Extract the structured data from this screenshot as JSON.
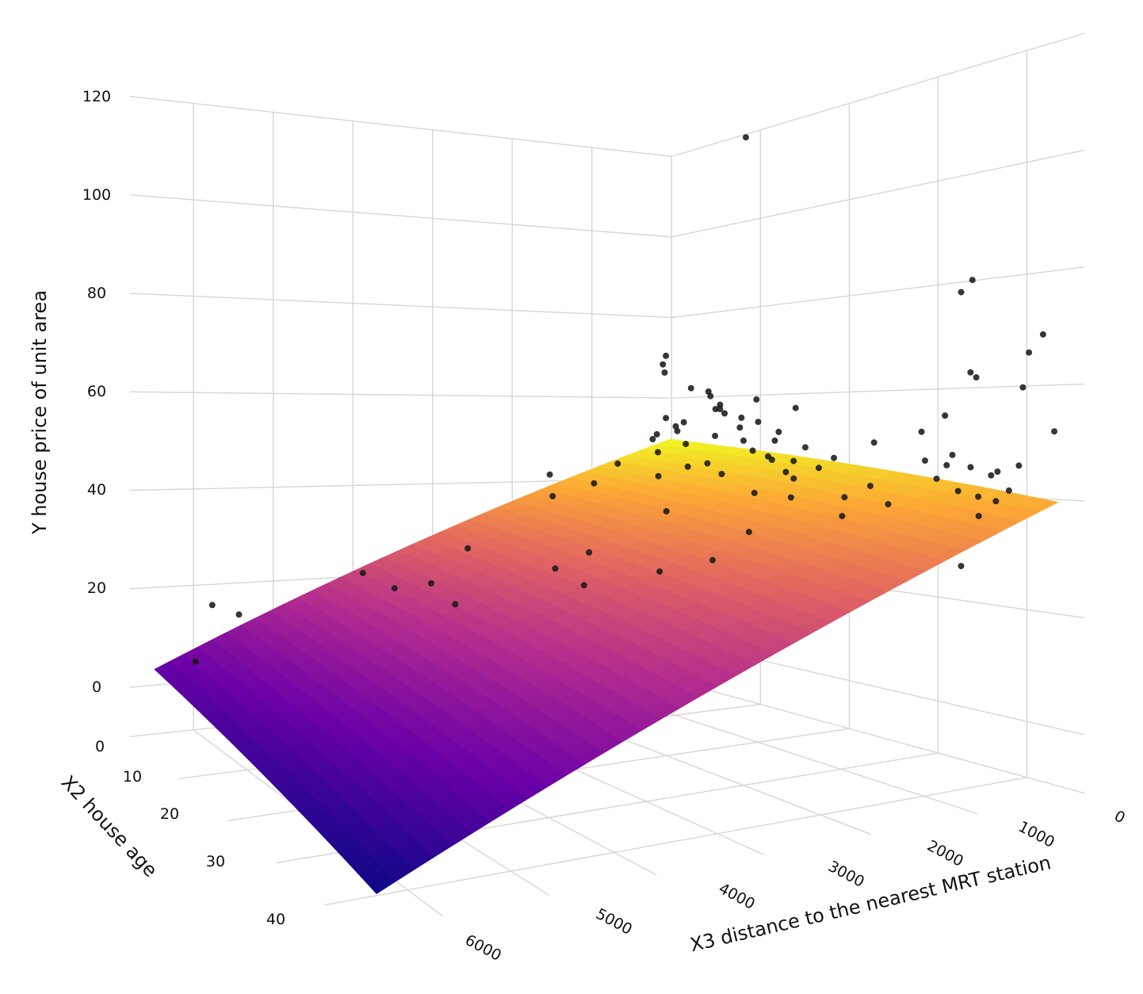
{
  "chart_data": {
    "type": "scatter3d+surface",
    "axes": {
      "x": {
        "title": "X2 house age",
        "range": [
          0,
          46.5
        ],
        "ticks": [
          0,
          10,
          20,
          30,
          40
        ],
        "tick_labels": [
          "0",
          "10",
          "20",
          "30",
          "40"
        ]
      },
      "y": {
        "title": "X3 distance to the nearest MRT station",
        "range": [
          0,
          6800
        ],
        "ticks": [
          0,
          1000,
          2000,
          3000,
          4000,
          5000,
          6000
        ],
        "tick_labels": [
          "0",
          "1000",
          "2000",
          "3000",
          "4000",
          "5000",
          "6000"
        ]
      },
      "z": {
        "title": "Y house price of unit area",
        "range": [
          -10,
          120
        ],
        "ticks": [
          0,
          20,
          40,
          60,
          80,
          100,
          120
        ],
        "tick_labels": [
          "0",
          "20",
          "40",
          "60",
          "80",
          "100",
          "120"
        ]
      }
    },
    "grid": true,
    "surface": {
      "intercept": 49.89,
      "coef_age": -0.231,
      "coef_distance": -0.00719,
      "x_range": [
        0,
        43.8
      ],
      "y_range": [
        23,
        6488
      ],
      "colorscale": [
        "#0d0887",
        "#6a00a8",
        "#b12a90",
        "#e16462",
        "#fca636",
        "#f0f921"
      ]
    },
    "marker_color": "#1a1a1a",
    "points": [
      [
        1.1,
        193,
        55
      ],
      [
        1.5,
        274,
        68
      ],
      [
        1.7,
        274,
        66
      ],
      [
        2.0,
        290,
        70
      ],
      [
        3.5,
        330,
        53
      ],
      [
        5.0,
        390,
        54
      ],
      [
        6.3,
        90,
        58
      ],
      [
        7.1,
        289,
        60
      ],
      [
        8.0,
        405,
        61
      ],
      [
        8.5,
        373,
        57
      ],
      [
        9.2,
        338,
        56
      ],
      [
        10.8,
        252,
        117.5
      ],
      [
        11.0,
        323,
        55
      ],
      [
        12.0,
        400,
        50
      ],
      [
        13.2,
        560,
        53
      ],
      [
        14.0,
        492,
        48
      ],
      [
        15.0,
        372,
        46
      ],
      [
        3.0,
        560,
        50
      ],
      [
        4.0,
        600,
        47
      ],
      [
        5.5,
        520,
        52
      ],
      [
        6.0,
        470,
        49
      ],
      [
        7.5,
        600,
        44
      ],
      [
        9.5,
        480,
        51
      ],
      [
        10.0,
        620,
        45
      ],
      [
        12.5,
        700,
        43
      ],
      [
        13.8,
        430,
        59
      ],
      [
        16.0,
        393,
        52
      ],
      [
        16.5,
        560,
        47
      ],
      [
        17.0,
        300,
        57
      ],
      [
        18.0,
        420,
        46
      ],
      [
        19.0,
        600,
        44
      ],
      [
        20.0,
        480,
        49
      ],
      [
        2.5,
        400,
        46
      ],
      [
        0.0,
        185,
        51
      ],
      [
        4.5,
        250,
        62
      ],
      [
        8.8,
        350,
        57
      ],
      [
        14.5,
        290,
        50
      ],
      [
        11.5,
        180,
        54
      ],
      [
        7.0,
        900,
        42
      ],
      [
        18.5,
        900,
        40
      ],
      [
        21.0,
        700,
        43
      ],
      [
        22.0,
        520,
        45
      ],
      [
        6.5,
        1200,
        38
      ],
      [
        3.2,
        1300,
        40
      ],
      [
        30.0,
        170,
        52
      ],
      [
        32.0,
        110,
        55
      ],
      [
        33.0,
        400,
        47
      ],
      [
        34.0,
        270,
        46
      ],
      [
        35.0,
        300,
        48
      ],
      [
        35.5,
        500,
        44
      ],
      [
        36.0,
        150,
        62
      ],
      [
        36.5,
        250,
        63
      ],
      [
        37.0,
        90,
        44
      ],
      [
        37.8,
        360,
        46
      ],
      [
        38.0,
        500,
        42
      ],
      [
        39.0,
        200,
        45
      ],
      [
        39.5,
        430,
        41
      ],
      [
        40.0,
        300,
        40
      ],
      [
        40.5,
        120,
        46
      ],
      [
        41.0,
        550,
        38
      ],
      [
        41.5,
        300,
        42
      ],
      [
        42.0,
        150,
        66
      ],
      [
        42.5,
        250,
        60
      ],
      [
        43.0,
        100,
        69
      ],
      [
        43.8,
        60,
        52
      ],
      [
        38.5,
        700,
        35
      ],
      [
        40.0,
        900,
        32
      ],
      [
        42.0,
        800,
        30
      ],
      [
        33.5,
        80,
        78
      ],
      [
        35.0,
        100,
        80
      ],
      [
        31.0,
        600,
        39
      ],
      [
        28.0,
        520,
        42
      ],
      [
        26.0,
        300,
        50
      ],
      [
        27.0,
        700,
        40
      ],
      [
        29.0,
        900,
        37
      ],
      [
        34.0,
        1000,
        33
      ],
      [
        36.0,
        1200,
        28
      ],
      [
        38.0,
        1100,
        27
      ],
      [
        25.0,
        1400,
        34
      ],
      [
        24.0,
        1000,
        40
      ],
      [
        23.0,
        450,
        47
      ],
      [
        30.0,
        1800,
        18
      ],
      [
        30.5,
        1850,
        17
      ],
      [
        1.0,
        5500,
        14
      ],
      [
        2.0,
        5900,
        17
      ],
      [
        5.0,
        6300,
        8
      ],
      [
        8.0,
        4500,
        25
      ],
      [
        9.0,
        4200,
        22
      ],
      [
        10.0,
        4600,
        13
      ],
      [
        11.0,
        4400,
        11
      ],
      [
        12.0,
        4000,
        24
      ],
      [
        13.0,
        3800,
        20
      ],
      [
        14.0,
        3600,
        20
      ],
      [
        15.0,
        3900,
        15
      ],
      [
        16.0,
        4200,
        11
      ],
      [
        16.5,
        3500,
        18
      ],
      [
        17.0,
        3300,
        21
      ],
      [
        18.0,
        3700,
        12
      ],
      [
        18.5,
        3100,
        28
      ],
      [
        19.0,
        3400,
        14
      ],
      [
        20.0,
        2900,
        25
      ],
      [
        21.0,
        3200,
        10
      ],
      [
        22.0,
        3000,
        32
      ],
      [
        22.5,
        2700,
        25
      ],
      [
        23.0,
        2500,
        20
      ],
      [
        14.0,
        2800,
        45
      ],
      [
        16.0,
        2200,
        47
      ],
      [
        24.0,
        2400,
        28
      ],
      [
        26.0,
        2000,
        30
      ],
      [
        27.0,
        1700,
        35
      ],
      [
        20.0,
        2000,
        38
      ],
      [
        12.0,
        2600,
        40
      ],
      [
        11.0,
        3500,
        30
      ]
    ]
  }
}
